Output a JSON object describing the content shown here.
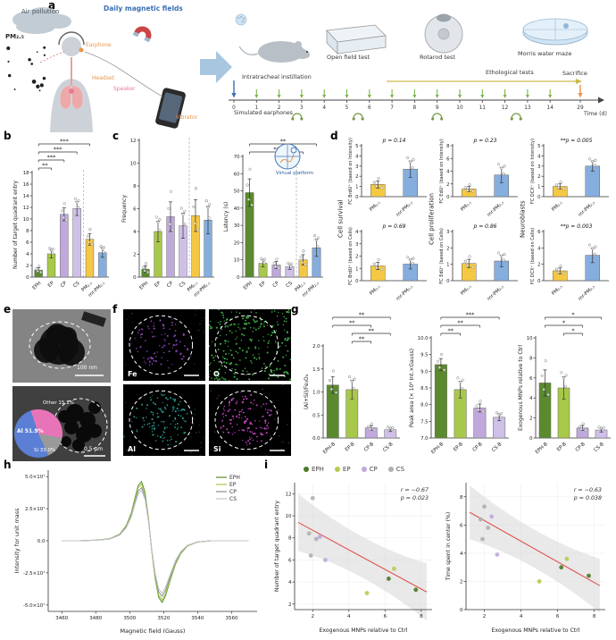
{
  "panel_labels": {
    "a": "a",
    "b": "b",
    "c": "c",
    "d": "d",
    "e": "e",
    "f": "f",
    "g": "g",
    "h": "h",
    "i": "i"
  },
  "panel_a": {
    "air_pollution": "Air pollution",
    "pm_label": "PM₂.₅",
    "daily_magnetic_fields": "Daily magnetic fields",
    "earphone": "Earphone",
    "headset": "Headset",
    "speaker": "Speaker",
    "vibrator": "Vibrator",
    "intratracheal": "Intratracheal instillation",
    "open_field": "Open field test",
    "rotarod": "Rotarod test",
    "water_maze": "Morris water maze",
    "ethological": "Ethological tests",
    "sacrifice": "Sacrifice",
    "simulated_earphones": "Simulated earphones",
    "time_label": "Time (d)",
    "days": [
      "0",
      "1",
      "2",
      "3",
      "4",
      "5",
      "6",
      "7",
      "8",
      "9",
      "10",
      "11",
      "12",
      "13",
      "14"
    ],
    "final_day": "29"
  },
  "panel_c": {
    "virtual_platform": "Virtual platform"
  },
  "panel_d": {
    "groups": [
      "Cell survival",
      "Cell proliferation",
      "Neuroblasts"
    ]
  },
  "panel_e": {
    "scale_top": "100 nm",
    "scale_bottom": "0.5 μm",
    "pie": {
      "slices": [
        {
          "text": "Al 51.9%",
          "label": "Al",
          "pct": 51.9,
          "color": "#5b7fd4"
        },
        {
          "text": "Si 33.0%",
          "label": "Si",
          "pct": 33.0,
          "color": "#e874b8"
        },
        {
          "text": "Other 15.1%",
          "label": "Other",
          "pct": 15.1,
          "color": "#9a9a9a"
        }
      ]
    }
  },
  "panel_f": {
    "tiles": [
      {
        "label": "Fe",
        "color": "#9b4fd4",
        "full": false
      },
      {
        "label": "O",
        "color": "#46c44e",
        "full": true
      },
      {
        "label": "Al",
        "color": "#2fa8a0",
        "full": false
      },
      {
        "label": "Si",
        "color": "#d84fd8",
        "full": false
      }
    ]
  },
  "panel_i": {
    "legend": [
      {
        "label": "EPH",
        "color": "#4a7a25"
      },
      {
        "label": "EP",
        "color": "#b5cc4e"
      },
      {
        "label": "CP",
        "color": "#c0a8dc"
      },
      {
        "label": "CS",
        "color": "#b0b0b0"
      }
    ]
  },
  "chart_data": [
    {
      "id": "b",
      "type": "bar",
      "ylabel": "Number of target quadrant entry",
      "categories": [
        "EPH",
        "EP",
        "CP",
        "CS",
        "PM₂.₅",
        "mr-PM₂.₅"
      ],
      "values": [
        1.2,
        4,
        10.8,
        11.8,
        6.5,
        4.2
      ],
      "errors": [
        0.4,
        0.7,
        1.1,
        1.2,
        1,
        0.8
      ],
      "colors": [
        "#5a8a2d",
        "#a8c84a",
        "#c0a8dc",
        "#cfc0e8",
        "#f5c843",
        "#85aede"
      ],
      "ylim": [
        0,
        18
      ],
      "yticks": [
        0,
        2,
        4,
        6,
        8,
        10,
        12,
        14,
        16,
        18
      ],
      "separator_after": 3,
      "ml": 24,
      "ndots": 5,
      "sig": [
        {
          "a": 0,
          "b": 1,
          "label": "**"
        },
        {
          "a": 0,
          "b": 2,
          "label": "***"
        },
        {
          "a": 0,
          "b": 3,
          "label": "***"
        },
        {
          "a": 0,
          "b": 4,
          "label": "***"
        }
      ]
    },
    {
      "id": "c1",
      "type": "bar",
      "ylabel": "Frequency",
      "categories": [
        "EPH",
        "EP",
        "CP",
        "CS",
        "PM₂.₅",
        "mr-PM₂.₅"
      ],
      "values": [
        0.7,
        4,
        5.3,
        4.5,
        5.4,
        5
      ],
      "errors": [
        0.3,
        0.9,
        1.3,
        1.1,
        1.4,
        1.2
      ],
      "colors": [
        "#5a8a2d",
        "#a8c84a",
        "#c0a8dc",
        "#cfc0e8",
        "#f5c843",
        "#85aede"
      ],
      "ylim": [
        0,
        12
      ],
      "yticks": [
        0,
        2,
        4,
        6,
        8,
        10,
        12
      ],
      "separator_after": 3,
      "ml": 22,
      "ndots": 5
    },
    {
      "id": "c2",
      "type": "bar",
      "ylabel": "Latency (s)",
      "categories": [
        "EPH",
        "EP",
        "CP",
        "CS",
        "PM₂.₅",
        "mr-PM₂.₅"
      ],
      "values": [
        49,
        8,
        7,
        6,
        10,
        17
      ],
      "errors": [
        8,
        2,
        2,
        1.5,
        3,
        5
      ],
      "colors": [
        "#5a8a2d",
        "#a8c84a",
        "#c0a8dc",
        "#cfc0e8",
        "#f5c843",
        "#85aede"
      ],
      "ylim": [
        0,
        70
      ],
      "yticks": [
        0,
        10,
        20,
        30,
        40,
        50,
        60,
        70
      ],
      "separator_after": 3,
      "ml": 24,
      "ndots": 5,
      "sig": [
        {
          "a": 0,
          "b": 4,
          "label": "**"
        },
        {
          "a": 0,
          "b": 5,
          "label": "**"
        }
      ]
    },
    {
      "id": "d1",
      "type": "bar",
      "ylabel": "FC BrdU⁺ (based on Intensity)",
      "ylsize": 5,
      "ylx": 6,
      "categories": [
        "PM₂.₅",
        "mr-PM₂.₅"
      ],
      "values": [
        1.2,
        2.7
      ],
      "errors": [
        0.35,
        0.8
      ],
      "colors": [
        "#f5c843",
        "#85aede"
      ],
      "ylim": [
        0,
        5
      ],
      "yticks": [
        0,
        1,
        2,
        3,
        4,
        5
      ],
      "p": "p = 0.14",
      "ml": 17,
      "mb": 26,
      "ndots": 6
    },
    {
      "id": "d2",
      "type": "bar",
      "ylabel": "FC EdU⁺ (based on Intensity)",
      "ylsize": 5,
      "ylx": 6,
      "categories": [
        "PM₂.₅",
        "mr-PM₂.₅"
      ],
      "values": [
        1.2,
        3.4
      ],
      "errors": [
        0.4,
        1.2
      ],
      "colors": [
        "#f5c843",
        "#85aede"
      ],
      "ylim": [
        0,
        8
      ],
      "yticks": [
        0,
        2,
        4,
        6,
        8
      ],
      "p": "p = 0.23",
      "ml": 17,
      "mb": 26,
      "ndots": 6
    },
    {
      "id": "d3",
      "type": "bar",
      "ylabel": "FC DCX⁺ (based on Intensity)",
      "ylsize": 5,
      "ylx": 6,
      "categories": [
        "PM₂.₅",
        "mr-PM₂.₅"
      ],
      "values": [
        1.0,
        3.0
      ],
      "errors": [
        0.25,
        0.5
      ],
      "colors": [
        "#f5c843",
        "#85aede"
      ],
      "ylim": [
        0,
        5
      ],
      "yticks": [
        0,
        1,
        2,
        3,
        4,
        5
      ],
      "p": "**p = 0.005",
      "ml": 17,
      "mb": 26,
      "ndots": 6
    },
    {
      "id": "d4",
      "type": "bar",
      "ylabel": "FC BrdU⁺ (based on Cells)",
      "ylsize": 5,
      "ylx": 6,
      "categories": [
        "PM₂.₅",
        "mr-PM₂.₅"
      ],
      "values": [
        1.2,
        1.35
      ],
      "errors": [
        0.3,
        0.4
      ],
      "colors": [
        "#f5c843",
        "#85aede"
      ],
      "ylim": [
        0,
        4
      ],
      "yticks": [
        0,
        1,
        2,
        3,
        4
      ],
      "p": "p = 0.69",
      "ml": 17,
      "mb": 26,
      "ndots": 6
    },
    {
      "id": "d5",
      "type": "bar",
      "ylabel": "FC EdU⁺ (based on Cells)",
      "ylsize": 5,
      "ylx": 6,
      "categories": [
        "PM₂.₅",
        "mr-PM₂.₅"
      ],
      "values": [
        1.05,
        1.2
      ],
      "errors": [
        0.25,
        0.35
      ],
      "colors": [
        "#f5c843",
        "#85aede"
      ],
      "ylim": [
        0,
        3
      ],
      "yticks": [
        0,
        1,
        2,
        3
      ],
      "p": "p = 0.86",
      "ml": 17,
      "mb": 26,
      "ndots": 6
    },
    {
      "id": "d6",
      "type": "bar",
      "ylabel": "FC DCX⁺ (based on Cells)",
      "ylsize": 5,
      "ylx": 6,
      "categories": [
        "PM₂.₅",
        "mr-PM₂.₅"
      ],
      "values": [
        1.2,
        3.1
      ],
      "errors": [
        0.35,
        0.9
      ],
      "colors": [
        "#f5c843",
        "#85aede"
      ],
      "ylim": [
        0,
        6
      ],
      "yticks": [
        0,
        2,
        4,
        6
      ],
      "p": "**p = 0.003",
      "ml": 17,
      "mb": 26,
      "ndots": 6
    },
    {
      "id": "g1",
      "type": "bar",
      "ylabel": "(Al+Si)/Fe₃O₄",
      "categories": [
        "EPH-B",
        "EP-B",
        "CP-B",
        "CS-B"
      ],
      "values": [
        1.15,
        1.05,
        0.22,
        0.18
      ],
      "errors": [
        0.18,
        0.2,
        0.05,
        0.04
      ],
      "colors": [
        "#5a8a2d",
        "#a8c84a",
        "#c0a8dc",
        "#cfc0e8"
      ],
      "ylim": [
        0,
        2
      ],
      "yticks": [
        0,
        0.5,
        1,
        1.5,
        2
      ],
      "ytlabels": [
        "0.0",
        "0.5",
        "1.0",
        "1.5",
        "2.0"
      ],
      "ml": 24,
      "mb": 26,
      "ndots": 5,
      "sig": [
        {
          "a": 1,
          "b": 2,
          "label": "**"
        },
        {
          "a": 1,
          "b": 3,
          "label": "**"
        },
        {
          "a": 0,
          "b": 2,
          "label": "**"
        },
        {
          "a": 0,
          "b": 3,
          "label": "**"
        }
      ]
    },
    {
      "id": "g2",
      "type": "bar",
      "ylabel": "Peak area (× 10⁸ Int.×Gauss)",
      "categories": [
        "EPH-B",
        "EP-B",
        "CP-B",
        "CS-B"
      ],
      "values": [
        9.2,
        8.45,
        7.9,
        7.62
      ],
      "errors": [
        0.18,
        0.25,
        0.12,
        0.1
      ],
      "colors": [
        "#5a8a2d",
        "#a8c84a",
        "#c0a8dc",
        "#cfc0e8"
      ],
      "ylim": [
        7,
        10
      ],
      "yticks": [
        7,
        7.5,
        8,
        8.5,
        9,
        9.5,
        10
      ],
      "ytlabels": [
        "7.0",
        "7.5",
        "8.0",
        "8.5",
        "9.0",
        "9.5",
        "10.0"
      ],
      "ml": 27,
      "mb": 26,
      "ndots": 4,
      "sig": [
        {
          "a": 0,
          "b": 1,
          "label": "**"
        },
        {
          "a": 0,
          "b": 2,
          "label": "**"
        },
        {
          "a": 0,
          "b": 3,
          "label": "***"
        }
      ]
    },
    {
      "id": "g3",
      "type": "bar",
      "ylabel": "Exogenous MNPs relative to Ctrl",
      "categories": [
        "EPH-B",
        "EP-B",
        "CP-B",
        "CS-B"
      ],
      "values": [
        5.5,
        5,
        1,
        0.8
      ],
      "errors": [
        1.3,
        1.1,
        0.25,
        0.2
      ],
      "colors": [
        "#5a8a2d",
        "#a8c84a",
        "#c0a8dc",
        "#cfc0e8"
      ],
      "ylim": [
        0,
        10
      ],
      "yticks": [
        0,
        2,
        4,
        6,
        8,
        10
      ],
      "ml": 22,
      "mb": 26,
      "ndots": 4,
      "sig": [
        {
          "a": 1,
          "b": 2,
          "label": "*"
        },
        {
          "a": 0,
          "b": 2,
          "label": "*"
        },
        {
          "a": 0,
          "b": 3,
          "label": "*"
        }
      ]
    },
    {
      "id": "h",
      "type": "line",
      "xlabel": "Magnetic field (Gauss)",
      "ylabel": "Intensity for unit mass",
      "xlim": [
        3452,
        3575
      ],
      "xticks": [
        3460,
        3480,
        3500,
        3520,
        3540,
        3560
      ],
      "ylim": [
        -5.5,
        5.5
      ],
      "yticks": [
        -5,
        -2.5,
        0,
        2.5,
        5
      ],
      "ytlabels": [
        "-5.0×10⁷",
        "-2.5×10⁷",
        "0.0",
        "2.5×10⁷",
        "5.0×10⁷"
      ],
      "x": [
        3460,
        3470,
        3480,
        3488,
        3494,
        3498,
        3501,
        3503,
        3505,
        3507,
        3509,
        3511,
        3513,
        3515,
        3517,
        3519,
        3521,
        3524,
        3527,
        3530,
        3534,
        3540,
        3548,
        3560,
        3570
      ],
      "base_y": [
        0,
        0,
        0.05,
        0.15,
        0.5,
        1.2,
        2.2,
        3.3,
        4.3,
        4.6,
        3.8,
        1.8,
        -0.8,
        -3,
        -4.4,
        -4.8,
        -4.3,
        -3,
        -1.8,
        -1,
        -0.4,
        -0.1,
        0,
        0,
        0
      ],
      "series": [
        {
          "name": "EPH",
          "color": "#5a8a2d",
          "scale": 1
        },
        {
          "name": "EP",
          "color": "#a8c84a",
          "scale": 0.96
        },
        {
          "name": "CP",
          "color": "#8a8f94",
          "scale": 0.9
        },
        {
          "name": "CS",
          "color": "#c2c6ca",
          "scale": 0.85
        }
      ]
    },
    {
      "id": "i1",
      "type": "scatter",
      "xlabel": "Exogenous MNPs relative to Ctrl",
      "ylabel": "Number of target quadrant entry",
      "xlim": [
        1,
        8.6
      ],
      "xticks": [
        2,
        4,
        6,
        8
      ],
      "ylim": [
        1.5,
        13
      ],
      "yticks": [
        2,
        4,
        6,
        8,
        10,
        12
      ],
      "r_label": "r = −0.67",
      "p_label": "p = 0.023",
      "trend": {
        "x1": 1.2,
        "y1": 9.4,
        "x2": 8.3,
        "y2": 3.1
      },
      "band_end": 2.6,
      "band_mid": 1.1,
      "series": [
        {
          "name": "EPH",
          "color": "#4a7a25",
          "points": [
            [
              6.2,
              4.3
            ],
            [
              7.7,
              3.3
            ]
          ]
        },
        {
          "name": "EP",
          "color": "#b5cc4e",
          "points": [
            [
              5.0,
              3.0
            ],
            [
              6.5,
              5.2
            ]
          ]
        },
        {
          "name": "CP",
          "color": "#c0a8dc",
          "points": [
            [
              2.4,
              8.1
            ],
            [
              2.7,
              6.0
            ]
          ]
        },
        {
          "name": "CS",
          "color": "#b0b0b0",
          "points": [
            [
              1.8,
              8.4
            ],
            [
              2.0,
              11.6
            ],
            [
              2.2,
              7.9
            ],
            [
              1.9,
              6.4
            ]
          ]
        }
      ]
    },
    {
      "id": "i2",
      "type": "scatter",
      "xlabel": "Exogenous MNPs relative to Ctrl",
      "ylabel": "Time spent in center (%)",
      "xlim": [
        1,
        8.6
      ],
      "xticks": [
        2,
        4,
        6,
        8
      ],
      "ylim": [
        0,
        9
      ],
      "yticks": [
        0,
        2,
        4,
        6,
        8
      ],
      "r_label": "r = −0.63",
      "p_label": "p = 0.038",
      "trend": {
        "x1": 1.2,
        "y1": 6.9,
        "x2": 8.3,
        "y2": 1.7
      },
      "band_end": 1.9,
      "band_mid": 0.8,
      "series": [
        {
          "name": "EPH",
          "color": "#4a7a25",
          "points": [
            [
              6.2,
              3.0
            ],
            [
              7.7,
              2.4
            ]
          ]
        },
        {
          "name": "EP",
          "color": "#b5cc4e",
          "points": [
            [
              5.0,
              2.0
            ],
            [
              6.5,
              3.6
            ]
          ]
        },
        {
          "name": "CP",
          "color": "#c0a8dc",
          "points": [
            [
              2.4,
              6.6
            ],
            [
              2.7,
              3.9
            ]
          ]
        },
        {
          "name": "CS",
          "color": "#b0b0b0",
          "points": [
            [
              1.8,
              6.4
            ],
            [
              2.0,
              7.3
            ],
            [
              2.2,
              5.8
            ],
            [
              1.9,
              5.0
            ]
          ]
        }
      ]
    }
  ]
}
